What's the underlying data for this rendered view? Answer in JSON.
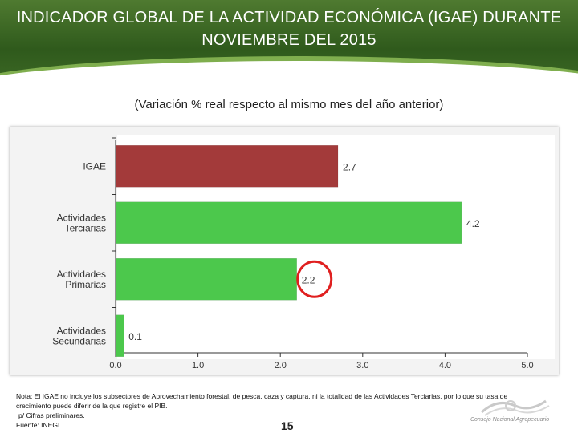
{
  "slide": {
    "title_line1": "INDICADOR GLOBAL DE LA ACTIVIDAD ECONÓMICA (IGAE) DURANTE",
    "title_line2": "NOVIEMBRE DEL 2015",
    "subtitle": "(Variación % real respecto al mismo mes del año anterior)",
    "footnote_line1": "Nota: El IGAE no incluye los subsectores de Aprovechamiento forestal, de pesca, caza y captura, ni la totalidad de las Actividades Terciarias, por lo que su tasa de",
    "footnote_line2": "crecimiento puede diferir de la que registre el PIB.",
    "footnote_line3": "p/ Cifras preliminares.",
    "footnote_line4": "Fuente: INEGI",
    "page_number": "15",
    "logo_text": "Consejo Nacional Agropecuario"
  },
  "chart_data": {
    "type": "bar",
    "orientation": "horizontal",
    "title": "(Variación % real respecto al mismo mes del año anterior)",
    "categories": [
      [
        "IGAE"
      ],
      [
        "Actividades",
        "Terciarias"
      ],
      [
        "Actividades",
        "Primarias"
      ],
      [
        "Actividades",
        "Secundarias"
      ]
    ],
    "values": [
      2.7,
      4.2,
      2.2,
      0.1
    ],
    "value_labels": [
      "2.7",
      "4.2",
      "2.2",
      "0.1"
    ],
    "bar_colors": [
      "#a33a3a",
      "#4cc84c",
      "#4cc84c",
      "#4cc84c"
    ],
    "xlim": [
      0,
      5
    ],
    "xticks": [
      "0.0",
      "1.0",
      "2.0",
      "3.0",
      "4.0",
      "5.0"
    ],
    "xtick_values": [
      0,
      1,
      2,
      3,
      4,
      5
    ],
    "grid": false,
    "highlight": {
      "category_index": 2,
      "shape": "circle",
      "color": "#e02020"
    }
  }
}
